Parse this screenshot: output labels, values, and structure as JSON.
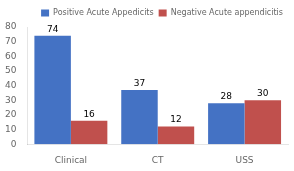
{
  "chart_data": {
    "type": "bar",
    "categories": [
      "Clinical",
      "CT",
      "USS"
    ],
    "series": [
      {
        "name": "Positive Acute Appedicits",
        "color": "#4472C4",
        "values": [
          74,
          37,
          28
        ]
      },
      {
        "name": "Negative Acute appendicitis",
        "color": "#C0504D",
        "values": [
          16,
          12,
          30
        ]
      }
    ],
    "ylim": [
      0,
      80
    ],
    "yticks": [
      0,
      10,
      20,
      30,
      40,
      50,
      60,
      70,
      80
    ],
    "grid": false,
    "legend": "upper right",
    "data_labels": true
  }
}
